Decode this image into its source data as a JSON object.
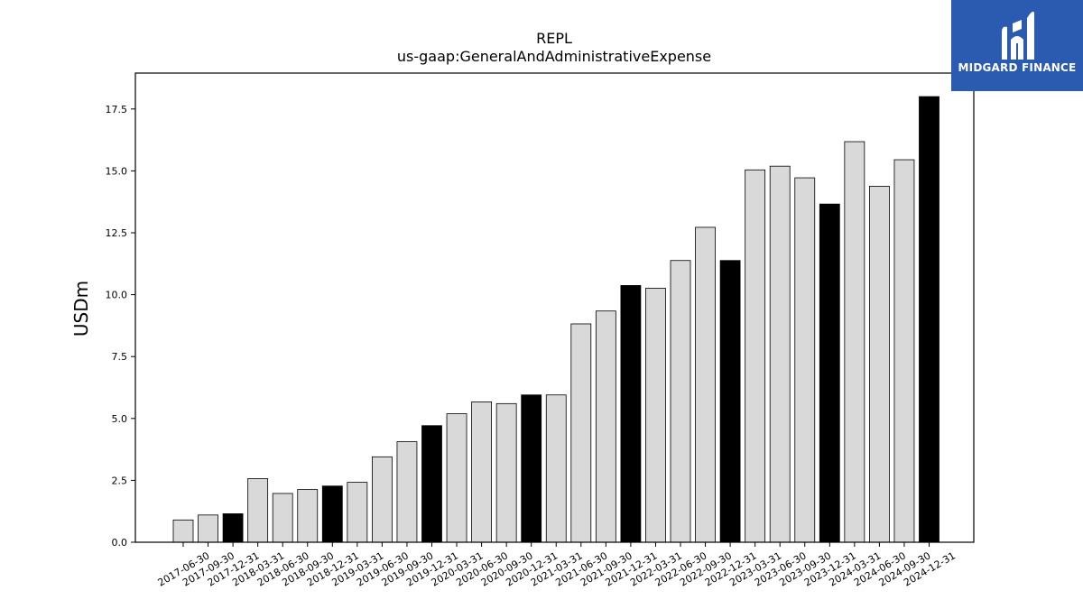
{
  "logo": {
    "text": "MIDGARD FINANCE"
  },
  "chart_data": {
    "type": "bar",
    "title": "REPL",
    "subtitle": "us-gaap:GeneralAndAdministrativeExpense",
    "xlabel": "",
    "ylabel": "USDm",
    "ylim": [
      0,
      18.95
    ],
    "yticks": [
      "0.0",
      "2.5",
      "5.0",
      "7.5",
      "10.0",
      "12.5",
      "15.0",
      "17.5"
    ],
    "grid": false,
    "colors": {
      "quarter": "#d9d9d9",
      "year_end": "#000000",
      "edge": "#000000"
    },
    "categories": [
      "2017-06-30",
      "2017-09-30",
      "2017-12-31",
      "2018-03-31",
      "2018-06-30",
      "2018-09-30",
      "2018-12-31",
      "2019-03-31",
      "2019-06-30",
      "2019-09-30",
      "2019-12-31",
      "2020-03-31",
      "2020-06-30",
      "2020-09-30",
      "2020-12-31",
      "2021-03-31",
      "2021-06-30",
      "2021-09-30",
      "2021-12-31",
      "2022-03-31",
      "2022-06-30",
      "2022-09-30",
      "2022-12-31",
      "2023-03-31",
      "2023-06-30",
      "2023-09-30",
      "2023-12-31",
      "2024-03-31",
      "2024-06-30",
      "2024-09-30",
      "2024-12-31"
    ],
    "values": [
      0.9,
      1.1,
      1.15,
      2.57,
      1.97,
      2.13,
      2.27,
      2.42,
      3.45,
      4.06,
      4.71,
      5.19,
      5.67,
      5.6,
      5.95,
      5.95,
      8.82,
      9.34,
      10.37,
      10.26,
      11.38,
      12.72,
      11.38,
      15.04,
      15.19,
      14.72,
      13.66,
      16.18,
      14.38,
      15.45,
      18.0
    ]
  }
}
